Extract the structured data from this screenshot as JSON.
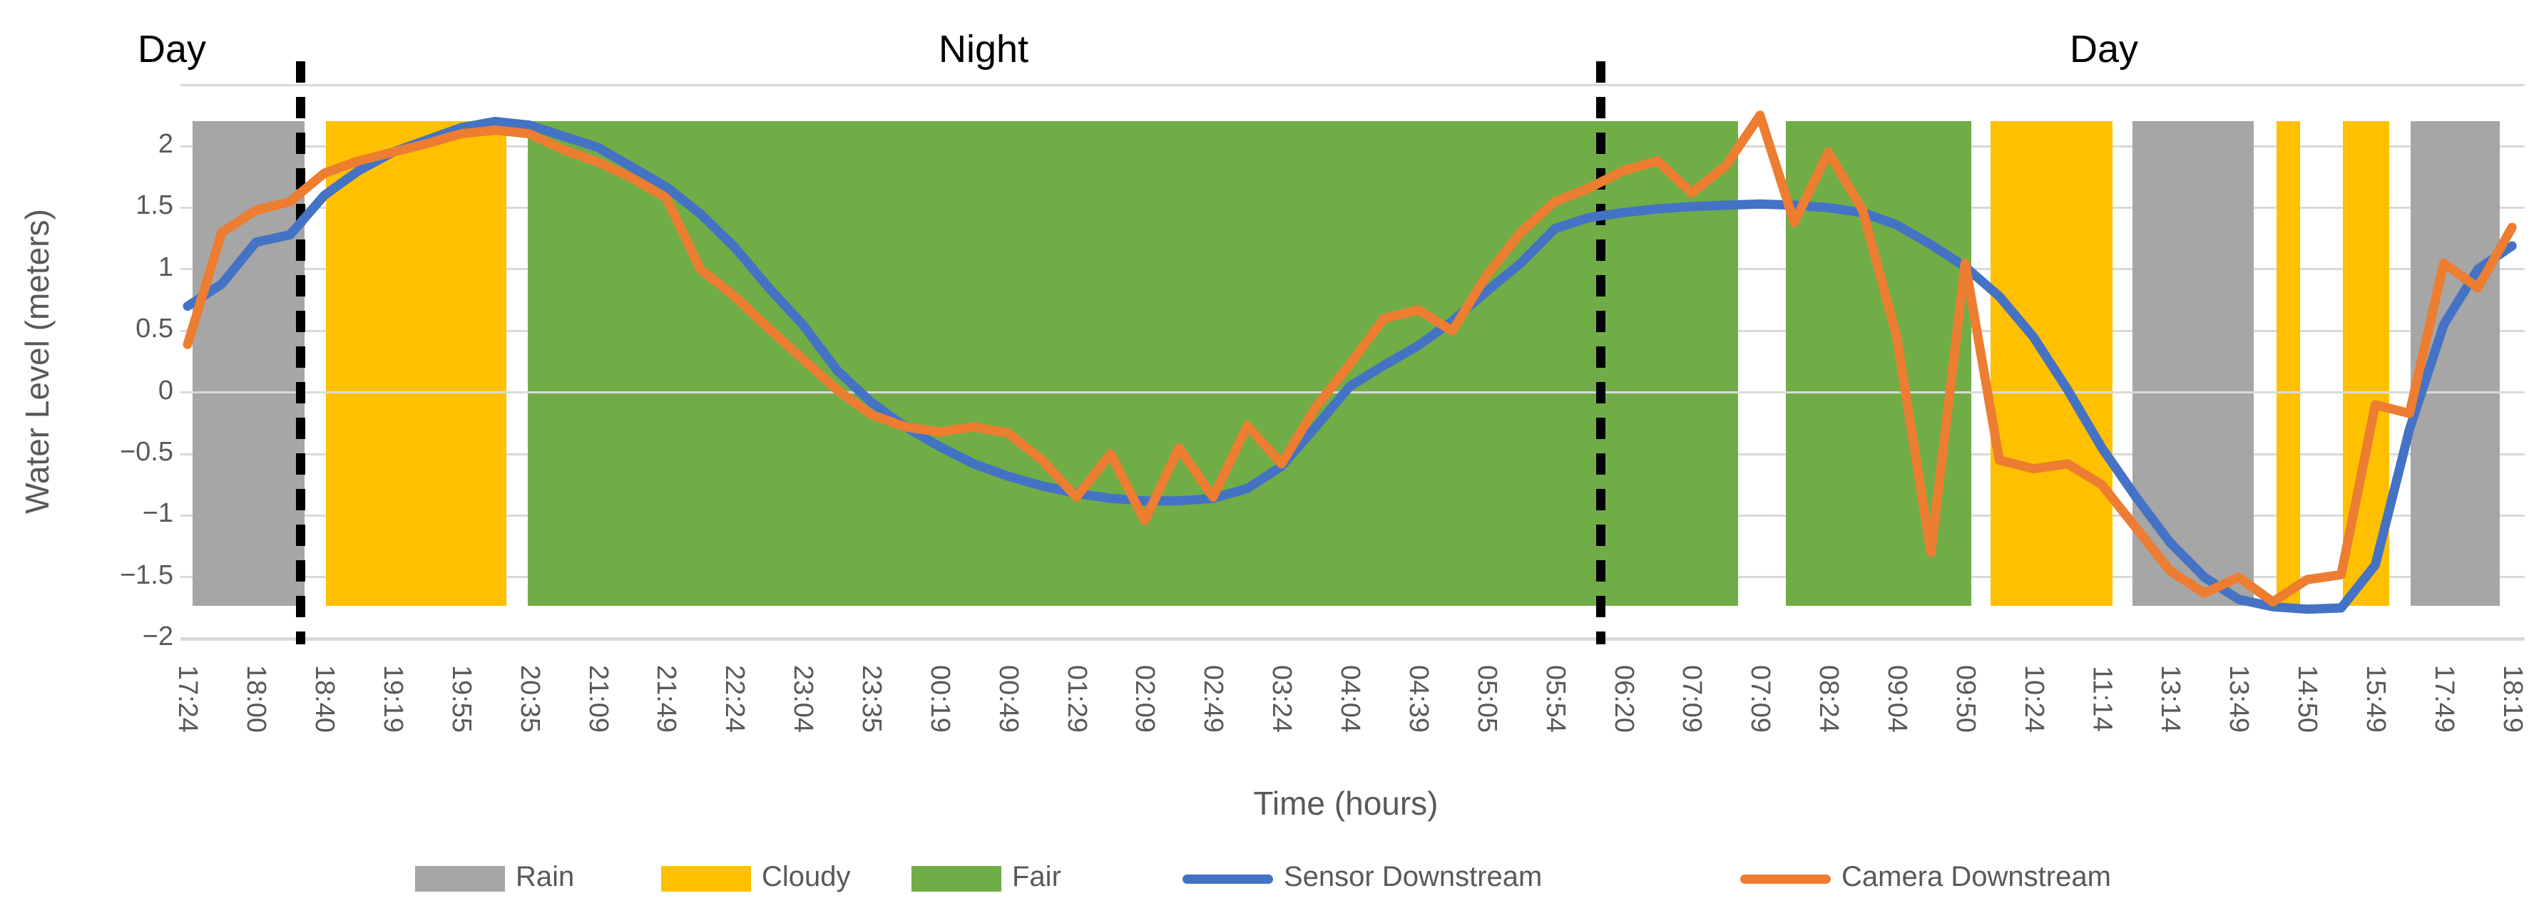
{
  "annotations": {
    "day_left": "Day",
    "night": "Night",
    "day_right": "Day"
  },
  "y_axis": {
    "title": "Water Level (meters)",
    "tick_labels": [
      "2",
      "1.5",
      "1",
      "0.5",
      "0",
      "−0.5",
      "−1",
      "−1.5",
      "−2"
    ],
    "tick_values": [
      2,
      1.5,
      1,
      0.5,
      0,
      -0.5,
      -1,
      -1.5,
      -2
    ]
  },
  "x_axis": {
    "title": "Time (hours)"
  },
  "legend": {
    "rain": "Rain",
    "cloudy": "Cloudy",
    "fair": "Fair",
    "sensor": "Sensor Downstream",
    "camera": "Camera Downstream"
  },
  "chart_data": {
    "type": "line",
    "title": "",
    "xlabel": "Time (hours)",
    "ylabel": "Water Level (meters)",
    "ylim": [
      -2,
      2.5
    ],
    "grid": true,
    "legend_position": "bottom",
    "x_tick_labels": [
      "17:24",
      "18:00",
      "18:40",
      "19:19",
      "19:55",
      "20:35",
      "21:09",
      "21:49",
      "22:24",
      "23:04",
      "23:35",
      "00:19",
      "00:49",
      "01:29",
      "02:09",
      "02:49",
      "03:24",
      "04:04",
      "04:39",
      "05:05",
      "05:54",
      "06:20",
      "07:09",
      "07:09",
      "08:24",
      "09:04",
      "09:50",
      "10:24",
      "11:14",
      "13:14",
      "13:49",
      "14:50",
      "15:49",
      "17:49",
      "18:19"
    ],
    "points_per_tick": 2,
    "num_points": 69,
    "series": [
      {
        "name": "Sensor Downstream",
        "color": "#4472C4",
        "values": [
          0.7,
          0.88,
          1.22,
          1.28,
          1.6,
          1.8,
          1.95,
          2.05,
          2.15,
          2.2,
          2.17,
          2.08,
          1.99,
          1.83,
          1.67,
          1.45,
          1.18,
          0.85,
          0.55,
          0.18,
          -0.08,
          -0.28,
          -0.44,
          -0.58,
          -0.68,
          -0.76,
          -0.82,
          -0.86,
          -0.88,
          -0.88,
          -0.86,
          -0.78,
          -0.6,
          -0.28,
          0.05,
          0.22,
          0.38,
          0.58,
          0.82,
          1.05,
          1.33,
          1.42,
          1.46,
          1.49,
          1.51,
          1.52,
          1.53,
          1.52,
          1.5,
          1.46,
          1.36,
          1.2,
          1.02,
          0.78,
          0.45,
          0.02,
          -0.45,
          -0.85,
          -1.22,
          -1.5,
          -1.68,
          -1.74,
          -1.76,
          -1.75,
          -1.4,
          -0.3,
          0.55,
          1.0,
          1.19
        ]
      },
      {
        "name": "Camera Downstream",
        "color": "#ED7D31",
        "values": [
          0.39,
          1.3,
          1.48,
          1.55,
          1.78,
          1.88,
          1.95,
          2.02,
          2.1,
          2.13,
          2.1,
          1.97,
          1.87,
          1.74,
          1.58,
          1.0,
          0.78,
          0.52,
          0.27,
          0.02,
          -0.18,
          -0.28,
          -0.32,
          -0.28,
          -0.33,
          -0.55,
          -0.85,
          -0.5,
          -1.04,
          -0.45,
          -0.85,
          -0.27,
          -0.58,
          -0.12,
          0.23,
          0.6,
          0.67,
          0.5,
          0.95,
          1.3,
          1.55,
          1.66,
          1.8,
          1.88,
          1.62,
          1.84,
          2.25,
          1.38,
          1.95,
          1.48,
          0.45,
          -1.3,
          1.05,
          -0.55,
          -0.62,
          -0.58,
          -0.75,
          -1.1,
          -1.45,
          -1.63,
          -1.5,
          -1.7,
          -1.52,
          -1.48,
          -0.1,
          -0.17,
          1.05,
          0.85,
          1.34
        ]
      }
    ],
    "weather_bands": [
      {
        "condition": "Rain",
        "from": 0.15,
        "to": 3.42
      },
      {
        "condition": "Cloudy",
        "from": 4.05,
        "to": 9.33
      },
      {
        "condition": "Fair",
        "from": 9.95,
        "to": 45.36
      },
      {
        "condition": "Fair",
        "from": 46.75,
        "to": 52.18
      },
      {
        "condition": "Cloudy",
        "from": 52.74,
        "to": 56.31
      },
      {
        "condition": "Rain",
        "from": 56.9,
        "to": 60.44
      },
      {
        "condition": "Cloudy",
        "from": 61.11,
        "to": 61.8
      },
      {
        "condition": "Cloudy",
        "from": 63.05,
        "to": 64.41
      },
      {
        "condition": "Rain",
        "from": 65.03,
        "to": 67.64
      }
    ],
    "band_colors": {
      "Rain": "#A6A6A6",
      "Cloudy": "#FFC000",
      "Fair": "#70AD47"
    },
    "band_value_extent": [
      -1.73,
      2.2
    ],
    "day_night_divider_positions": [
      3.3,
      41.35
    ],
    "gridline_color": "#D9D9D9"
  }
}
